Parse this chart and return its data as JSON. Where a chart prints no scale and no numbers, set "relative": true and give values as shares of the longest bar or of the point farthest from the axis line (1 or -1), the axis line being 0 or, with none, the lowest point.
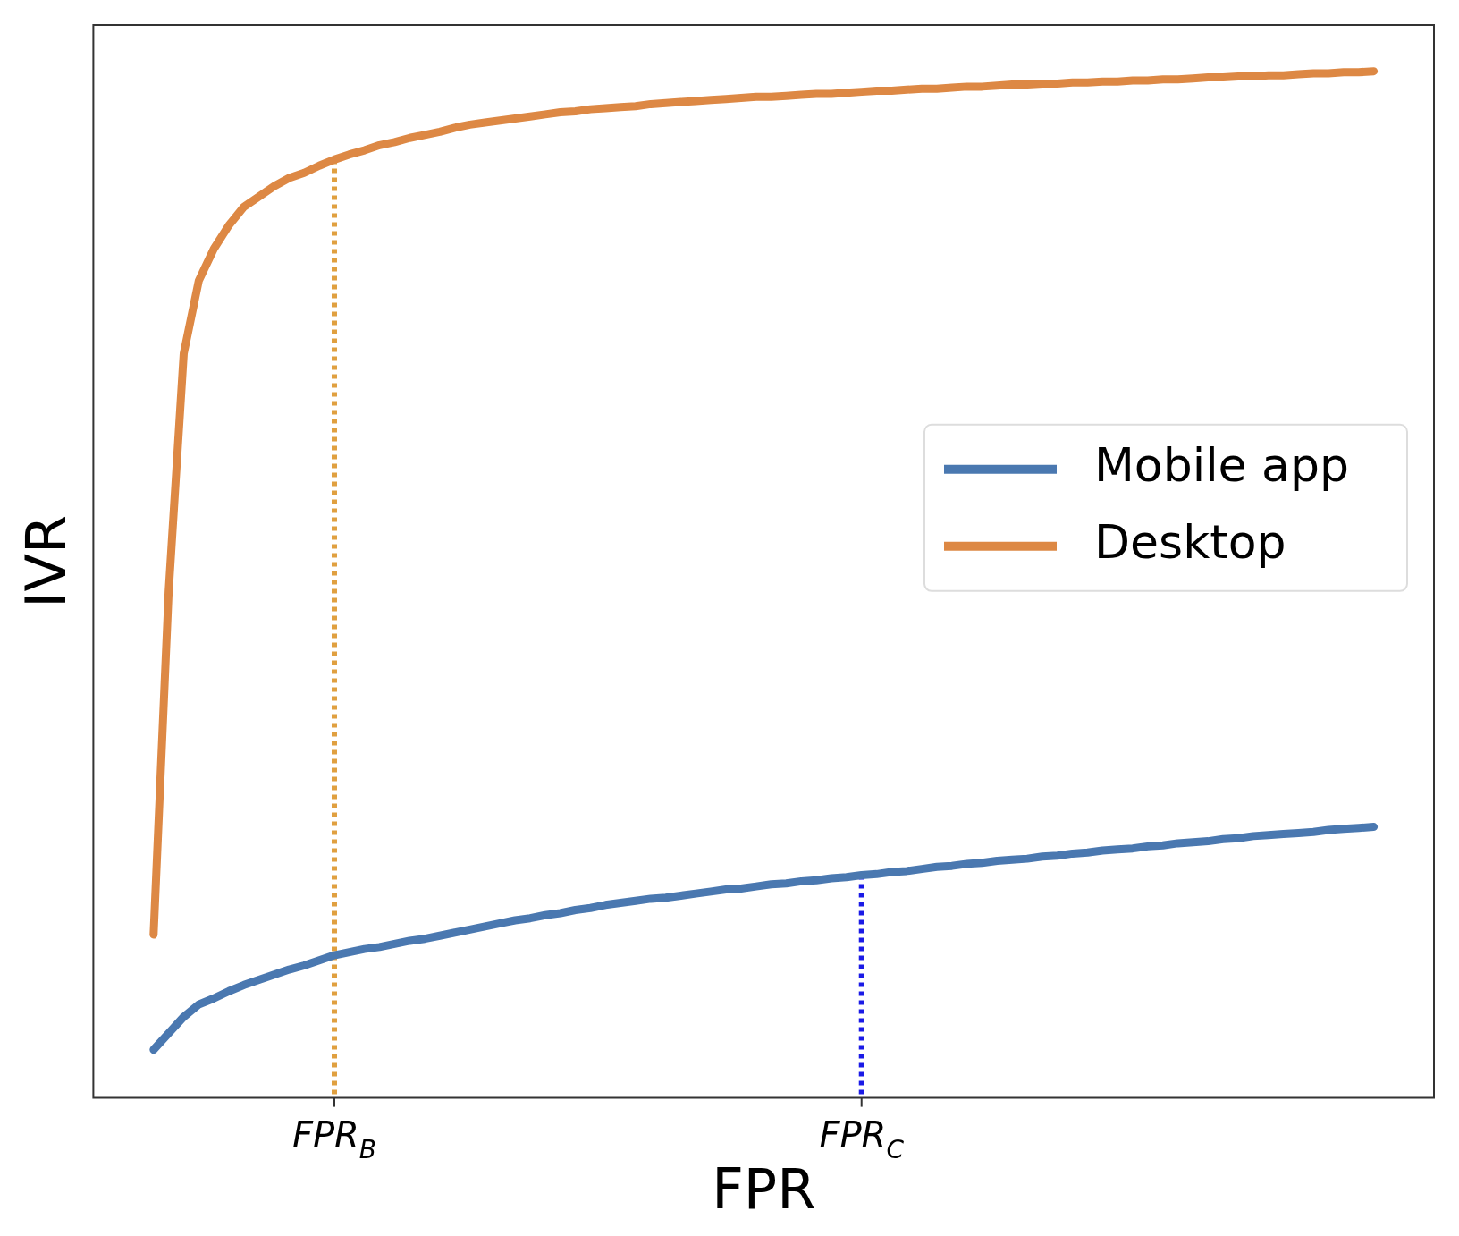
{
  "chart_data": {
    "type": "line",
    "relative": true,
    "xlabel": "FPR",
    "ylabel": "IVR",
    "categories": [
      null,
      null,
      null,
      null,
      null,
      null,
      null,
      null,
      null,
      null,
      null,
      null,
      null,
      null,
      null,
      null,
      "FPR$_{B}$",
      null,
      null,
      null,
      null,
      null,
      null,
      null,
      null,
      null,
      null,
      null,
      null,
      null,
      null,
      null,
      null,
      null,
      null,
      null,
      null,
      null,
      null,
      null,
      null,
      null,
      null,
      null,
      null,
      null,
      null,
      null,
      null,
      null,
      null,
      "FPR$_{C}$",
      null,
      null,
      null,
      null,
      null,
      null,
      null,
      null,
      null,
      null,
      null,
      null,
      null,
      null,
      null,
      null,
      null,
      null,
      null,
      null,
      null,
      null,
      null,
      null,
      null,
      null,
      null,
      null,
      null,
      null,
      null,
      null,
      null,
      null,
      null,
      null,
      null,
      null
    ],
    "grid": false,
    "legend": "right",
    "marker": "none",
    "line_style": "solid",
    "series": [
      {
        "name": "Mobile app",
        "color": "#4a78b0",
        "values": [
          null,
          null,
          null,
          null,
          0.047,
          0.063,
          0.079,
          0.091,
          0.097,
          0.104,
          0.11,
          0.115,
          0.12,
          0.125,
          0.129,
          0.134,
          0.139,
          0.142,
          0.145,
          0.147,
          0.15,
          0.153,
          0.155,
          0.158,
          0.161,
          0.164,
          0.167,
          0.17,
          0.173,
          0.175,
          0.178,
          0.18,
          0.183,
          0.185,
          0.188,
          0.19,
          0.192,
          0.194,
          0.195,
          0.197,
          0.199,
          0.201,
          0.203,
          0.204,
          0.206,
          0.208,
          0.209,
          0.211,
          0.212,
          0.214,
          0.215,
          0.217,
          0.218,
          0.22,
          0.221,
          0.223,
          0.225,
          0.226,
          0.228,
          0.229,
          0.231,
          0.232,
          0.233,
          0.235,
          0.236,
          0.238,
          0.239,
          0.241,
          0.242,
          0.243,
          0.245,
          0.246,
          0.248,
          0.249,
          0.25,
          0.252,
          0.253,
          0.255,
          0.256,
          0.257,
          0.258,
          0.259,
          0.261,
          0.262,
          0.263,
          0.264,
          null,
          null,
          null,
          null
        ]
      },
      {
        "name": "Desktop",
        "color": "#dd8844",
        "values": [
          null,
          null,
          null,
          null,
          0.159,
          0.493,
          0.725,
          0.796,
          0.827,
          0.85,
          0.868,
          0.878,
          0.888,
          0.896,
          0.901,
          0.908,
          0.914,
          0.919,
          0.923,
          0.928,
          0.931,
          0.935,
          0.938,
          0.941,
          0.945,
          0.948,
          0.95,
          0.952,
          0.954,
          0.956,
          0.958,
          0.96,
          0.961,
          0.963,
          0.964,
          0.965,
          0.966,
          0.968,
          0.969,
          0.97,
          0.971,
          0.972,
          0.973,
          0.974,
          0.975,
          0.975,
          0.976,
          0.977,
          0.978,
          0.978,
          0.979,
          0.98,
          0.981,
          0.981,
          0.982,
          0.983,
          0.983,
          0.984,
          0.985,
          0.985,
          0.986,
          0.987,
          0.987,
          0.988,
          0.988,
          0.989,
          0.989,
          0.99,
          0.99,
          0.991,
          0.991,
          0.992,
          0.992,
          0.993,
          0.994,
          0.994,
          0.995,
          0.995,
          0.996,
          0.996,
          0.997,
          0.998,
          0.998,
          0.999,
          0.999,
          1,
          null,
          null,
          null,
          null
        ]
      },
      {
        "color": "#e0a040",
        "line_style": "dotted",
        "x": [
          "FPR$_{B}$",
          "FPR$_{B}$"
        ],
        "values": [
          0,
          0.914
        ]
      },
      {
        "color": "#1a1ae6",
        "line_style": "dotted",
        "x": [
          "FPR$_{C}$",
          "FPR$_{C}$"
        ],
        "values": [
          0,
          0.217
        ]
      }
    ]
  }
}
